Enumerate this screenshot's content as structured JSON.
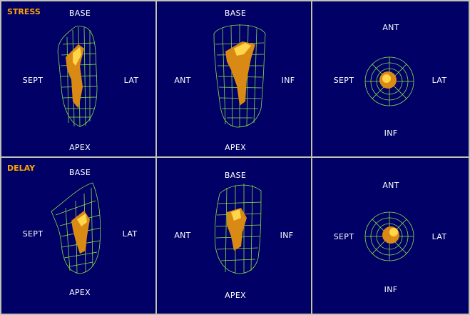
{
  "rows": [
    {
      "phase": "STRESS",
      "panels": [
        {
          "view": "long-axis-sept-lat",
          "top": "BASE",
          "bottom": "APEX",
          "left": "SEPT",
          "right": "LAT"
        },
        {
          "view": "long-axis-ant-inf",
          "top": "BASE",
          "bottom": "APEX",
          "left": "ANT",
          "right": "INF"
        },
        {
          "view": "short-axis",
          "top": "ANT",
          "bottom": "INF",
          "left": "SEPT",
          "right": "LAT"
        }
      ]
    },
    {
      "phase": "DELAY",
      "panels": [
        {
          "view": "long-axis-sept-lat",
          "top": "BASE",
          "bottom": "APEX",
          "left": "SEPT",
          "right": "LAT"
        },
        {
          "view": "long-axis-ant-inf",
          "top": "BASE",
          "bottom": "APEX",
          "left": "ANT",
          "right": "INF"
        },
        {
          "view": "short-axis",
          "top": "ANT",
          "bottom": "INF",
          "left": "SEPT",
          "right": "LAT"
        }
      ]
    }
  ],
  "colors": {
    "panel_bg": "#000066",
    "mesh": "#8ae04a",
    "volume": "#d98a14",
    "volume_highlight": "#ffd54a",
    "phase_label": "#ffa500",
    "orientation_label": "#ffffff"
  }
}
